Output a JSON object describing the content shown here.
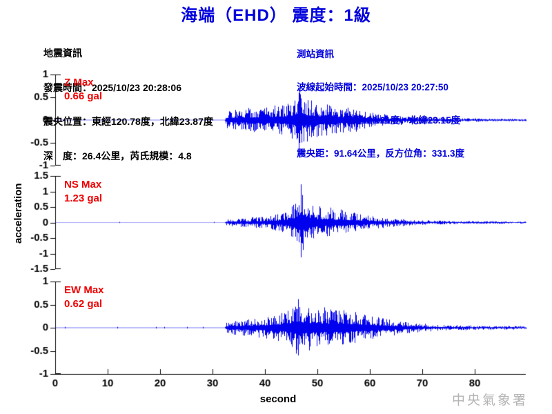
{
  "title": "海端（EHD） 震度：1級",
  "colors": {
    "accent_blue": "#0000dd",
    "wave_blue": "#0000ee",
    "label_red": "#ee0000",
    "axis_black": "#000000",
    "agency_gray": "#b4b4b4"
  },
  "eq_info": {
    "header": "地震資訊",
    "lines": [
      "發震時間：2025/10/23 20:28:06",
      "震央位置：東經120.78度，北緯23.87度",
      "深　度：26.4公里，芮氏規模：4.8"
    ]
  },
  "station_info": {
    "header": "測站資訊",
    "lines": [
      "波線起始時間：2025/10/23 20:27:50",
      "測站位置：東經121.21度，北緯23.15度",
      "震央距：91.64公里，反方位角：331.3度"
    ]
  },
  "footer": {
    "agency": "中央氣象署"
  },
  "chart_data": {
    "type": "line",
    "subtype": "seismogram-3-component",
    "xlabel": "second",
    "ylabel": "acceleration",
    "xlim": [
      0,
      89.7
    ],
    "xticks": [
      "0",
      "10",
      "20",
      "30",
      "40",
      "50",
      "60",
      "70",
      "80"
    ],
    "grid": false,
    "line_color": "#0000ee",
    "channels": [
      {
        "name": "Z",
        "label": "Z Max",
        "max_label": "0.66 gal",
        "max_gal": 0.66,
        "ylim": [
          -1,
          1
        ],
        "yticks": [
          "1",
          "0.5",
          "0",
          "-0.5",
          "-1"
        ],
        "onset_s": 32.5,
        "peak": {
          "t": 46.6,
          "up": 0.66,
          "dn": 0.5
        },
        "envelope": [
          [
            0,
            0.004
          ],
          [
            32.3,
            0.004
          ],
          [
            32.6,
            0.17
          ],
          [
            34,
            0.22
          ],
          [
            36,
            0.24
          ],
          [
            38,
            0.26
          ],
          [
            40,
            0.28
          ],
          [
            42,
            0.3
          ],
          [
            44,
            0.34
          ],
          [
            45,
            0.4
          ],
          [
            46,
            0.55
          ],
          [
            46.6,
            0.66
          ],
          [
            47.2,
            0.52
          ],
          [
            48,
            0.47
          ],
          [
            49,
            0.43
          ],
          [
            50,
            0.38
          ],
          [
            52,
            0.34
          ],
          [
            54,
            0.3
          ],
          [
            56,
            0.27
          ],
          [
            58,
            0.22
          ],
          [
            60,
            0.17
          ],
          [
            62,
            0.13
          ],
          [
            64,
            0.1
          ],
          [
            67,
            0.08
          ],
          [
            70,
            0.06
          ],
          [
            75,
            0.045
          ],
          [
            80,
            0.035
          ],
          [
            85,
            0.03
          ],
          [
            89.7,
            0.025
          ]
        ]
      },
      {
        "name": "NS",
        "label": "NS Max",
        "max_label": "1.23 gal",
        "max_gal": 1.23,
        "ylim": [
          -1.5,
          1.5
        ],
        "yticks": [
          "1.5",
          "1",
          "0.5",
          "0",
          "-0.5",
          "-1",
          "-1.5"
        ],
        "onset_s": 32.5,
        "peak": {
          "t": 46.9,
          "up": 1.23,
          "dn": 1.12
        },
        "envelope": [
          [
            0,
            0.004
          ],
          [
            32.3,
            0.004
          ],
          [
            32.6,
            0.1
          ],
          [
            34,
            0.13
          ],
          [
            36,
            0.15
          ],
          [
            38,
            0.17
          ],
          [
            40,
            0.2
          ],
          [
            42,
            0.26
          ],
          [
            43.5,
            0.33
          ],
          [
            45,
            0.48
          ],
          [
            46,
            0.75
          ],
          [
            46.9,
            1.23
          ],
          [
            47.6,
            0.85
          ],
          [
            48.5,
            0.6
          ],
          [
            50,
            0.5
          ],
          [
            51.5,
            0.42
          ],
          [
            52.5,
            0.55
          ],
          [
            53.5,
            0.38
          ],
          [
            54.5,
            0.45
          ],
          [
            56,
            0.32
          ],
          [
            57,
            0.36
          ],
          [
            58,
            0.28
          ],
          [
            60,
            0.22
          ],
          [
            62,
            0.17
          ],
          [
            64,
            0.13
          ],
          [
            66,
            0.11
          ],
          [
            68,
            0.09
          ],
          [
            70,
            0.075
          ],
          [
            75,
            0.055
          ],
          [
            80,
            0.045
          ],
          [
            85,
            0.038
          ],
          [
            89.7,
            0.032
          ]
        ]
      },
      {
        "name": "EW",
        "label": "EW Max",
        "max_label": "0.62 gal",
        "max_gal": 0.62,
        "ylim": [
          -1,
          1
        ],
        "yticks": [
          "1",
          "0.5",
          "0",
          "-0.5",
          "-1"
        ],
        "onset_s": 32.5,
        "peak": {
          "t": 46.3,
          "up": 0.62,
          "dn": 0.6
        },
        "envelope": [
          [
            0,
            0.004
          ],
          [
            32.3,
            0.004
          ],
          [
            32.6,
            0.12
          ],
          [
            34,
            0.15
          ],
          [
            36,
            0.17
          ],
          [
            38,
            0.19
          ],
          [
            40,
            0.23
          ],
          [
            42,
            0.28
          ],
          [
            44,
            0.36
          ],
          [
            45.5,
            0.5
          ],
          [
            46.3,
            0.62
          ],
          [
            47,
            0.52
          ],
          [
            48,
            0.46
          ],
          [
            50,
            0.43
          ],
          [
            52,
            0.39
          ],
          [
            54,
            0.41
          ],
          [
            56,
            0.36
          ],
          [
            58,
            0.31
          ],
          [
            60,
            0.27
          ],
          [
            62,
            0.22
          ],
          [
            64,
            0.18
          ],
          [
            66,
            0.14
          ],
          [
            68,
            0.11
          ],
          [
            70,
            0.09
          ],
          [
            73,
            0.07
          ],
          [
            76,
            0.055
          ],
          [
            80,
            0.047
          ],
          [
            85,
            0.04
          ],
          [
            89.7,
            0.035
          ]
        ]
      }
    ]
  }
}
